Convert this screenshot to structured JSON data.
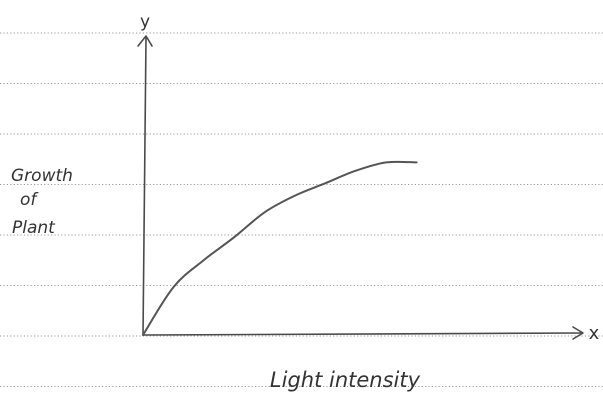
{
  "chart_data": {
    "type": "line",
    "title": "",
    "xlabel": "Light intensity",
    "ylabel_lines": [
      "Growth",
      "of",
      "Plant"
    ],
    "x_axis_symbol": "x",
    "y_axis_symbol": "y",
    "xlim": [
      0,
      10
    ],
    "ylim": [
      0,
      10
    ],
    "grid": false,
    "series": [
      {
        "x": [
          0,
          1,
          2,
          3,
          4,
          5,
          6,
          7,
          8,
          9
        ],
        "y": [
          0,
          2.3,
          3.6,
          4.7,
          5.9,
          6.7,
          7.3,
          7.9,
          8.3,
          8.3
        ]
      }
    ]
  }
}
